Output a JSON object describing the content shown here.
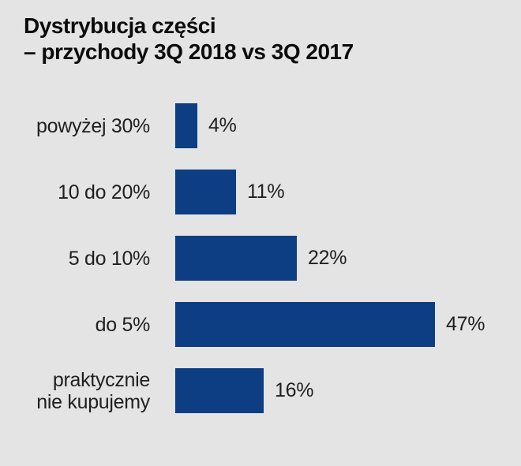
{
  "chart_data": {
    "type": "bar",
    "orientation": "horizontal",
    "title": "Dystrybucja części – przychody 3Q 2018 vs 3Q 2017",
    "title_lines": [
      "Dystrybucja części",
      "– przychody 3Q 2018 vs 3Q 2017"
    ],
    "categories": [
      "powyżej 30%",
      "10 do 20%",
      "5 do 10%",
      "do 5%",
      "praktycznie nie kupujemy"
    ],
    "category_lines": [
      [
        "powyżej 30%"
      ],
      [
        "10 do 20%"
      ],
      [
        "5 do 10%"
      ],
      [
        "do 5%"
      ],
      [
        "praktycznie",
        "nie kupujemy"
      ]
    ],
    "values": [
      4,
      11,
      22,
      47,
      16
    ],
    "value_labels": [
      "4%",
      "11%",
      "22%",
      "47%",
      "16%"
    ],
    "xlabel": "",
    "ylabel": "",
    "xlim": [
      0,
      50
    ],
    "grid": false,
    "legend": false,
    "bar_color": "#0d3d83",
    "background_color": "#e3e4e3",
    "text_color": "#1f1f1f",
    "title_color": "#0c0c0c"
  }
}
